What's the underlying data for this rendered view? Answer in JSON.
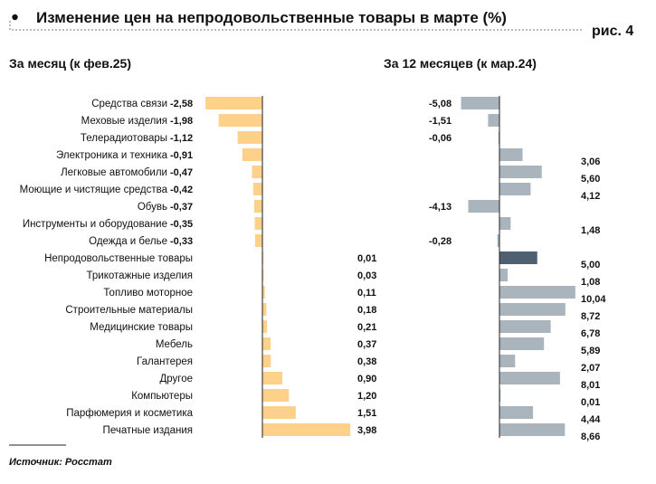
{
  "title": "Изменение цен на непродовольственные товары в марте (%)",
  "figure_label": "рис. 4",
  "source": "Источник: Росстат",
  "colors": {
    "left_bar": "#fdd18a",
    "right_bar": "#a9b4bd",
    "right_highlight": "#4f6170",
    "axis": "#222222",
    "frame": "#777777"
  },
  "chart_data": [
    {
      "type": "bar",
      "orientation": "horizontal",
      "title": "За месяц (к фев.25)",
      "categories": [
        "Средства связи",
        "Меховые изделия",
        "Телерадиотовары",
        "Электроника и техника",
        "Легковые автомобили",
        "Моющие и чистящие средства",
        "Обувь",
        "Инструменты и оборудование",
        "Одежда и белье",
        "Непродовольственные товары",
        "Трикотажные изделия",
        "Топливо моторное",
        "Строительные материалы",
        "Медицинские товары",
        "Мебель",
        "Галантерея",
        "Другое",
        "Компьютеры",
        "Парфюмерия и косметика",
        "Печатные издания"
      ],
      "values": [
        -2.58,
        -1.98,
        -1.12,
        -0.91,
        -0.47,
        -0.42,
        -0.37,
        -0.35,
        -0.33,
        0.01,
        0.03,
        0.11,
        0.18,
        0.21,
        0.37,
        0.38,
        0.9,
        1.2,
        1.51,
        3.98
      ],
      "labels": [
        "-2,58",
        "-1,98",
        "-1,12",
        "-0,91",
        "-0,47",
        "-0,42",
        "-0,37",
        "-0,35",
        "-0,33",
        "0,01",
        "0,03",
        "0,11",
        "0,18",
        "0,21",
        "0,37",
        "0,38",
        "0,90",
        "1,20",
        "1,51",
        "3,98"
      ]
    },
    {
      "type": "bar",
      "orientation": "horizontal",
      "title": "За 12 месяцев (к мар.24)",
      "values": [
        -5.08,
        -1.51,
        -0.06,
        3.06,
        5.6,
        4.12,
        -4.13,
        1.48,
        -0.28,
        5.0,
        1.08,
        10.04,
        8.72,
        6.78,
        5.89,
        2.07,
        8.01,
        0.01,
        4.44,
        8.66
      ],
      "labels": [
        "-5,08",
        "-1,51",
        "-0,06",
        "3,06",
        "5,60",
        "4,12",
        "-4,13",
        "1,48",
        "-0,28",
        "5,00",
        "1,08",
        "10,04",
        "8,72",
        "6,78",
        "5,89",
        "2,07",
        "8,01",
        "0,01",
        "4,44",
        "8,66"
      ],
      "highlight_category": "Непродовольственные товары"
    }
  ]
}
